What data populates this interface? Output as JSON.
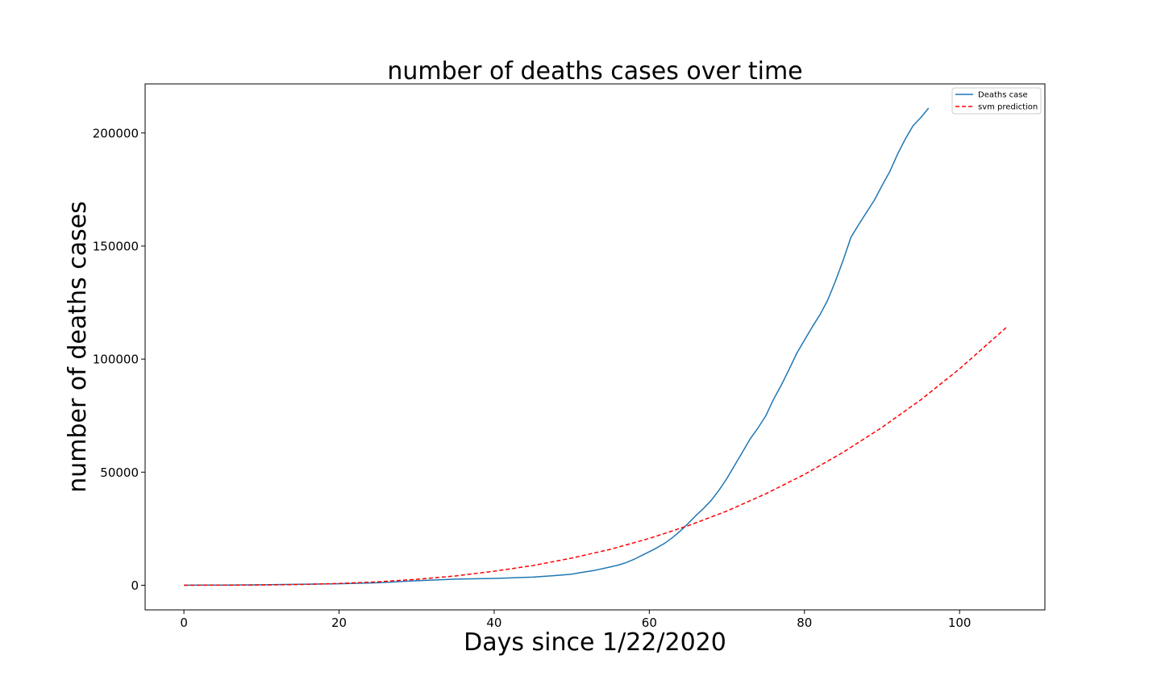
{
  "chart_data": {
    "type": "line",
    "title": "number of deaths cases over time",
    "xlabel": "Days since 1/22/2020",
    "ylabel": "number of deaths cases",
    "xlim": [
      -5,
      111
    ],
    "ylim": [
      -10900,
      221700
    ],
    "xticks": [
      0,
      20,
      40,
      60,
      80,
      100
    ],
    "yticks": [
      0,
      50000,
      100000,
      150000,
      200000
    ],
    "grid": false,
    "legend_position": "top-right",
    "series": [
      {
        "name": "Deaths case",
        "color": "#1f77b4",
        "style": "solid",
        "x": [
          0,
          5,
          10,
          15,
          20,
          25,
          30,
          35,
          40,
          45,
          48,
          50,
          51,
          53,
          55,
          56,
          57,
          58,
          59,
          60,
          61,
          62,
          63,
          64,
          65,
          66,
          67,
          68,
          69,
          70,
          71,
          72,
          73,
          74,
          75,
          76,
          77,
          78,
          79,
          80,
          81,
          82,
          83,
          84,
          85,
          86,
          87,
          88,
          89,
          90,
          91,
          92,
          93,
          94,
          95,
          96
        ],
        "y": [
          17,
          82,
          213,
          426,
          636,
          1100,
          2000,
          2700,
          3000,
          3600,
          4300,
          4900,
          5500,
          6600,
          8100,
          8900,
          10000,
          11400,
          13100,
          14800,
          16600,
          18600,
          21100,
          24000,
          27300,
          30800,
          34000,
          37600,
          42100,
          47200,
          53000,
          58800,
          64700,
          69500,
          74800,
          82100,
          88400,
          95300,
          102500,
          108400,
          114200,
          119600,
          126100,
          134500,
          143800,
          153900,
          159500,
          164900,
          170200,
          176700,
          182900,
          190600,
          197300,
          203200,
          206800,
          211000
        ]
      },
      {
        "name": "svm prediction",
        "color": "#ff0000",
        "style": "dashed",
        "x": [
          0,
          5,
          10,
          15,
          20,
          25,
          30,
          35,
          40,
          45,
          50,
          55,
          60,
          65,
          70,
          75,
          80,
          85,
          90,
          95,
          100,
          106
        ],
        "y": [
          0,
          10,
          100,
          320,
          770,
          1500,
          2600,
          4100,
          6200,
          8700,
          12000,
          15900,
          20700,
          26300,
          32800,
          40400,
          49000,
          58800,
          69800,
          82000,
          95700,
          113900
        ]
      }
    ]
  }
}
